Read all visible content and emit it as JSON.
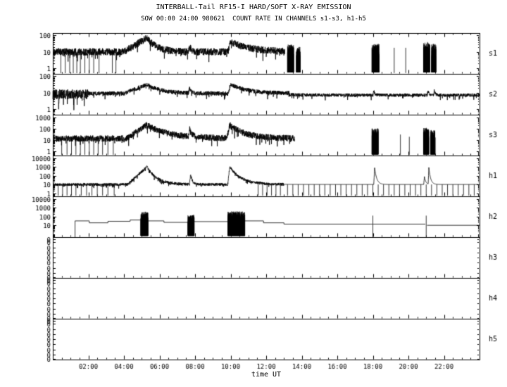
{
  "chart_data": {
    "type": "line",
    "title": "INTERBALL-Tail RF15-I HARD/SOFT X-RAY EMISSION",
    "subtitle": "SOW 00:00 24:00 980621  COUNT RATE IN CHANNELS s1-s3, h1-h5",
    "xlabel": "time UT",
    "colors": {
      "line": "#000000",
      "background": "#ffffff"
    },
    "x_axis": {
      "range_hours": [
        0,
        24
      ],
      "minor_tick_hours": 0.5,
      "tick_hours": [
        2,
        4,
        6,
        8,
        10,
        12,
        14,
        16,
        18,
        20,
        22
      ],
      "tick_labels": [
        "02:00",
        "04:00",
        "06:00",
        "08:00",
        "10:00",
        "12:00",
        "14:00",
        "16:00",
        "18:00",
        "20:00",
        "22:00"
      ]
    },
    "panels": [
      {
        "label": "s1",
        "log_range": [
          -0.35,
          2.15
        ],
        "y_tick_decades": [
          2,
          1,
          0
        ],
        "y_tick_labels": [
          "100",
          "10",
          "1"
        ],
        "signal": {
          "noise": [
            {
              "t0": 0.05,
              "t1": 13.05,
              "base": 1.0,
              "amp": 0.22
            }
          ],
          "humps": [
            {
              "t": 5.3,
              "amp": 0.85,
              "rise": 1.3,
              "tau": 0.55
            },
            {
              "t": 7.7,
              "amp": 0.35,
              "rise": 0.08,
              "tau": 0.1
            },
            {
              "t": 10.0,
              "amp": 0.62,
              "rise": 0.15,
              "tau": 1.1
            }
          ],
          "dropouts": [
            0.45,
            0.7,
            0.95,
            1.15,
            1.35,
            1.55,
            1.8,
            2.05,
            2.3,
            2.6,
            3.35,
            3.55
          ],
          "bursts": [
            {
              "t0": 13.2,
              "t1": 13.55,
              "lo": -0.25,
              "hi": 1.45
            },
            {
              "t0": 13.7,
              "t1": 13.92,
              "lo": -0.25,
              "hi": 1.3
            },
            {
              "t0": 17.95,
              "t1": 18.35,
              "lo": -0.25,
              "hi": 1.5
            },
            {
              "t0": 20.85,
              "t1": 21.2,
              "lo": -0.25,
              "hi": 1.6
            },
            {
              "t0": 21.3,
              "t1": 21.55,
              "lo": -0.25,
              "hi": 1.5
            }
          ],
          "vlines": [
            {
              "t": 19.2,
              "lo": -0.3,
              "hi": 1.25
            },
            {
              "t": 19.85,
              "lo": -0.3,
              "hi": 1.25
            }
          ]
        }
      },
      {
        "label": "s2",
        "log_range": [
          -0.35,
          2.15
        ],
        "y_tick_decades": [
          2,
          1,
          0
        ],
        "y_tick_labels": [
          "100",
          "10",
          "1"
        ],
        "signal": {
          "noise": [
            {
              "t0": 0.0,
              "t1": 2.0,
              "base": 0.9,
              "amp": 0.3
            },
            {
              "t0": 2.0,
              "t1": 13.3,
              "base": 0.95,
              "amp": 0.13
            },
            {
              "t0": 13.3,
              "t1": 24.0,
              "base": 0.85,
              "amp": 0.1
            }
          ],
          "humps": [
            {
              "t": 5.3,
              "amp": 0.55,
              "rise": 1.3,
              "tau": 0.8
            },
            {
              "t": 7.7,
              "amp": 0.3,
              "rise": 0.08,
              "tau": 0.1
            },
            {
              "t": 10.0,
              "amp": 0.55,
              "rise": 0.15,
              "tau": 1.0
            },
            {
              "t": 18.05,
              "amp": 0.3,
              "rise": 0.04,
              "tau": 0.06
            },
            {
              "t": 21.1,
              "amp": 0.25,
              "rise": 0.04,
              "tau": 0.06
            },
            {
              "t": 21.45,
              "amp": 0.3,
              "rise": 0.04,
              "tau": 0.06
            }
          ]
        }
      },
      {
        "label": "s3",
        "log_range": [
          -0.35,
          3.25
        ],
        "y_tick_decades": [
          3,
          2,
          1,
          0
        ],
        "y_tick_labels": [
          "1000",
          "100",
          "10",
          "1"
        ],
        "signal": {
          "noise": [
            {
              "t0": 0.05,
              "t1": 13.6,
              "base": 1.15,
              "amp": 0.28
            }
          ],
          "humps": [
            {
              "t": 5.25,
              "amp": 1.2,
              "rise": 1.1,
              "tau": 1.3
            },
            {
              "t": 7.7,
              "amp": 0.65,
              "rise": 0.08,
              "tau": 0.12
            },
            {
              "t": 9.95,
              "amp": 1.15,
              "rise": 0.15,
              "tau": 0.9
            }
          ],
          "dropouts": [
            0.5,
            0.8,
            1.05,
            1.3,
            1.55,
            1.8,
            2.05,
            2.3,
            2.55,
            2.8,
            3.1,
            3.4
          ],
          "bursts": [
            {
              "t0": 17.95,
              "t1": 18.3,
              "lo": -0.25,
              "hi": 2.05
            },
            {
              "t0": 20.85,
              "t1": 21.15,
              "lo": -0.25,
              "hi": 2.1
            },
            {
              "t0": 21.25,
              "t1": 21.5,
              "lo": -0.25,
              "hi": 1.9
            }
          ],
          "vlines": [
            {
              "t": 19.55,
              "lo": -0.3,
              "hi": 1.5
            },
            {
              "t": 20.05,
              "lo": -0.3,
              "hi": 1.3
            }
          ]
        }
      },
      {
        "label": "h1",
        "log_range": [
          -0.35,
          4.3
        ],
        "y_tick_decades": [
          4,
          3,
          2,
          1,
          0
        ],
        "y_tick_labels": [
          "10000",
          "1000",
          "100",
          "10",
          "1"
        ],
        "signal": {
          "noise": [
            {
              "t0": 0.05,
              "t1": 13.0,
              "base": 1.0,
              "amp": 0.16
            }
          ],
          "flat": [
            {
              "t0": 13.0,
              "t1": 24.0,
              "base": 1.0,
              "tick_dt": 0.3
            }
          ],
          "humps": [
            {
              "t": 5.3,
              "amp": 2.0,
              "rise": 1.1,
              "tau": 0.55
            },
            {
              "t": 7.75,
              "amp": 1.15,
              "rise": 0.06,
              "tau": 0.1
            },
            {
              "t": 9.95,
              "amp": 2.0,
              "rise": 0.12,
              "tau": 0.65
            },
            {
              "t": 18.1,
              "amp": 1.9,
              "rise": 0.05,
              "tau": 0.12
            },
            {
              "t": 20.9,
              "amp": 0.9,
              "rise": 0.04,
              "tau": 0.08
            },
            {
              "t": 21.15,
              "amp": 1.9,
              "rise": 0.04,
              "tau": 0.1
            }
          ],
          "dropouts": [
            0.3,
            0.55,
            0.8,
            1.05,
            1.3,
            1.6,
            1.9,
            2.2,
            2.5,
            2.8,
            3.1,
            3.45,
            11.55,
            11.8,
            12.05,
            12.3,
            12.55,
            12.8
          ]
        }
      },
      {
        "label": "h2",
        "log_range": [
          -0.35,
          4.3
        ],
        "y_tick_decades": [
          4,
          3,
          2,
          1
        ],
        "y_tick_labels": [
          "10000",
          "1000",
          "100",
          "10"
        ],
        "signal": {
          "steps": [
            [
              1.25,
              2.05,
              1.5
            ],
            [
              2.05,
              3.1,
              1.28
            ],
            [
              3.1,
              4.35,
              1.45
            ],
            [
              4.35,
              4.95,
              1.6
            ],
            [
              5.35,
              6.25,
              1.5
            ],
            [
              6.25,
              7.6,
              1.33
            ],
            [
              7.95,
              9.85,
              1.42
            ],
            [
              10.8,
              11.85,
              1.5
            ],
            [
              11.85,
              13.0,
              1.28
            ],
            [
              13.0,
              17.98,
              1.13
            ],
            [
              18.02,
              20.95,
              1.13
            ],
            [
              21.05,
              24.0,
              1.0
            ]
          ],
          "bursts": [
            {
              "t0": 4.95,
              "t1": 5.35,
              "lo": -0.2,
              "hi": 2.55
            },
            {
              "t0": 7.6,
              "t1": 7.95,
              "lo": -0.2,
              "hi": 2.2
            },
            {
              "t0": 9.85,
              "t1": 10.8,
              "lo": -0.2,
              "hi": 2.6
            }
          ],
          "vlines": [
            {
              "t": 1.25,
              "lo": -0.35,
              "hi": 1.5
            },
            {
              "t": 18.0,
              "lo": -0.35,
              "hi": 2.1
            },
            {
              "t": 21.0,
              "lo": -0.35,
              "hi": 2.1
            }
          ]
        }
      },
      {
        "label": "h3",
        "log_range": null,
        "y_tick_decades": null,
        "y_tick_labels": [
          "0",
          "0",
          "0",
          "0",
          "0",
          "0",
          "0",
          "0",
          "0"
        ],
        "signal": null
      },
      {
        "label": "h4",
        "log_range": null,
        "y_tick_decades": null,
        "y_tick_labels": [
          "0",
          "0",
          "0",
          "0",
          "0",
          "0",
          "0",
          "0",
          "0"
        ],
        "signal": null
      },
      {
        "label": "h5",
        "log_range": null,
        "y_tick_decades": null,
        "y_tick_labels": [
          "0",
          "0",
          "0",
          "0",
          "0",
          "0",
          "0",
          "0",
          "0"
        ],
        "signal": null
      }
    ]
  }
}
